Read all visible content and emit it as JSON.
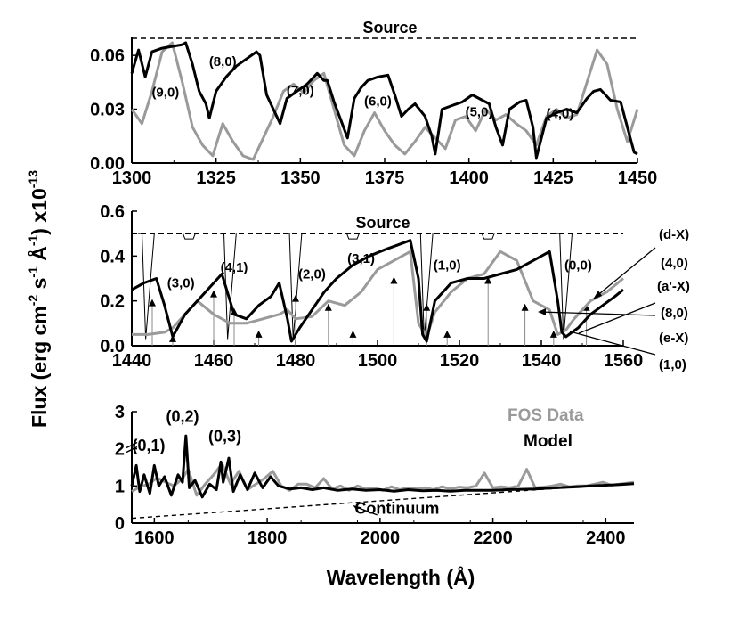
{
  "chart_data": [
    {
      "type": "line",
      "panel": "top",
      "xlim": [
        1300,
        1450
      ],
      "ylim": [
        0,
        0.07
      ],
      "xticks": [
        1300,
        1325,
        1350,
        1375,
        1400,
        1425,
        1450
      ],
      "xtick_labels": [
        "1300",
        "1325",
        "1350",
        "1375",
        "1400",
        "1425",
        "1450"
      ],
      "yticks": [
        0,
        0.03,
        0.06
      ],
      "ytick_labels": [
        "0.00",
        "0.03",
        "0.06"
      ],
      "source_label": "Source",
      "source_level": 0.0695,
      "series": [
        {
          "name": "FOS Data",
          "color": "#9a9a9a",
          "x": [
            1300,
            1303,
            1306,
            1309,
            1312,
            1315,
            1318,
            1321,
            1324,
            1327,
            1330,
            1333,
            1336,
            1339,
            1342,
            1345,
            1348,
            1351,
            1354,
            1357,
            1360,
            1363,
            1366,
            1369,
            1372,
            1375,
            1378,
            1381,
            1384,
            1387,
            1390,
            1393,
            1396,
            1399,
            1402,
            1405,
            1408,
            1411,
            1414,
            1417,
            1420,
            1423,
            1426,
            1429,
            1432,
            1435,
            1438,
            1441,
            1444,
            1447,
            1450
          ],
          "y": [
            0.03,
            0.022,
            0.04,
            0.062,
            0.067,
            0.045,
            0.02,
            0.01,
            0.004,
            0.022,
            0.012,
            0.004,
            0.002,
            0.014,
            0.026,
            0.04,
            0.044,
            0.039,
            0.046,
            0.05,
            0.03,
            0.01,
            0.004,
            0.018,
            0.028,
            0.018,
            0.01,
            0.005,
            0.012,
            0.02,
            0.014,
            0.008,
            0.024,
            0.026,
            0.018,
            0.03,
            0.024,
            0.027,
            0.022,
            0.018,
            0.01,
            0.026,
            0.03,
            0.025,
            0.027,
            0.045,
            0.063,
            0.055,
            0.03,
            0.012,
            0.03
          ]
        },
        {
          "name": "Model",
          "color": "#000000",
          "x": [
            1300,
            1302,
            1304,
            1306,
            1309,
            1312,
            1315,
            1316,
            1318,
            1320,
            1322,
            1323,
            1325,
            1328,
            1331,
            1334,
            1337,
            1338,
            1340,
            1342,
            1344,
            1346,
            1349,
            1352,
            1355,
            1357,
            1358,
            1360,
            1362,
            1364,
            1366,
            1368,
            1370,
            1373,
            1376,
            1378,
            1380,
            1382,
            1384,
            1387,
            1389,
            1390,
            1392,
            1395,
            1398,
            1401,
            1404,
            1406,
            1408,
            1410,
            1412,
            1415,
            1417,
            1419,
            1420,
            1423,
            1426,
            1429,
            1432,
            1435,
            1437,
            1439,
            1442,
            1445,
            1447,
            1449,
            1450
          ],
          "y": [
            0.05,
            0.063,
            0.048,
            0.062,
            0.064,
            0.065,
            0.066,
            0.067,
            0.055,
            0.04,
            0.033,
            0.025,
            0.04,
            0.048,
            0.054,
            0.058,
            0.062,
            0.06,
            0.038,
            0.03,
            0.022,
            0.036,
            0.04,
            0.044,
            0.05,
            0.046,
            0.046,
            0.034,
            0.024,
            0.014,
            0.036,
            0.042,
            0.046,
            0.048,
            0.049,
            0.038,
            0.026,
            0.03,
            0.033,
            0.026,
            0.015,
            0.005,
            0.03,
            0.032,
            0.034,
            0.038,
            0.035,
            0.033,
            0.02,
            0.01,
            0.03,
            0.034,
            0.035,
            0.02,
            0.003,
            0.025,
            0.028,
            0.03,
            0.028,
            0.036,
            0.04,
            0.041,
            0.035,
            0.034,
            0.02,
            0.006,
            0.005
          ]
        }
      ],
      "annotations": [
        {
          "text": "(9,0)",
          "x": 1310,
          "y": 0.037
        },
        {
          "text": "(8,0)",
          "x": 1327,
          "y": 0.054
        },
        {
          "text": "(7,0)",
          "x": 1350,
          "y": 0.038
        },
        {
          "text": "(6,0)",
          "x": 1373,
          "y": 0.032
        },
        {
          "text": "(5,0)",
          "x": 1403,
          "y": 0.026
        },
        {
          "text": "(4,0)",
          "x": 1427,
          "y": 0.025
        }
      ]
    },
    {
      "type": "line",
      "panel": "middle",
      "xlim": [
        1440,
        1560
      ],
      "ylim": [
        0,
        0.6
      ],
      "xticks": [
        1440,
        1460,
        1480,
        1500,
        1520,
        1540,
        1560
      ],
      "xtick_labels": [
        "1440",
        "1460",
        "1480",
        "1500",
        "1520",
        "1540",
        "1560"
      ],
      "yticks": [
        0,
        0.2,
        0.4,
        0.6
      ],
      "ytick_labels": [
        "0.0",
        "0.2",
        "0.4",
        "0.6"
      ],
      "source_label": "Source",
      "source_level": 0.5,
      "series": [
        {
          "name": "FOS Data",
          "color": "#9a9a9a",
          "x": [
            1440,
            1444,
            1448,
            1450,
            1452,
            1456,
            1460,
            1464,
            1468,
            1472,
            1476,
            1478,
            1480,
            1484,
            1488,
            1492,
            1496,
            1500,
            1504,
            1508,
            1510,
            1512,
            1514,
            1518,
            1522,
            1526,
            1530,
            1534,
            1538,
            1542,
            1544,
            1546,
            1548,
            1552,
            1556,
            1560
          ],
          "y": [
            0.05,
            0.05,
            0.06,
            0.08,
            0.12,
            0.2,
            0.14,
            0.1,
            0.1,
            0.12,
            0.14,
            0.16,
            0.12,
            0.13,
            0.2,
            0.18,
            0.24,
            0.34,
            0.38,
            0.42,
            0.1,
            0.04,
            0.15,
            0.24,
            0.3,
            0.32,
            0.42,
            0.38,
            0.2,
            0.16,
            0.05,
            0.07,
            0.12,
            0.2,
            0.24,
            0.3
          ]
        },
        {
          "name": "Model",
          "color": "#000000",
          "x": [
            1440,
            1443,
            1446,
            1448,
            1450,
            1453,
            1456,
            1459,
            1462,
            1463,
            1465,
            1468,
            1471,
            1474,
            1476,
            1478,
            1479,
            1481,
            1484,
            1487,
            1490,
            1494,
            1498,
            1502,
            1505,
            1508,
            1510,
            1511,
            1512,
            1514,
            1518,
            1522,
            1526,
            1530,
            1534,
            1538,
            1542,
            1544,
            1545,
            1546,
            1549,
            1552,
            1555,
            1558,
            1560
          ],
          "y": [
            0.25,
            0.28,
            0.3,
            0.18,
            0.04,
            0.14,
            0.2,
            0.26,
            0.32,
            0.26,
            0.14,
            0.12,
            0.18,
            0.22,
            0.28,
            0.12,
            0.02,
            0.08,
            0.16,
            0.24,
            0.3,
            0.36,
            0.4,
            0.43,
            0.45,
            0.47,
            0.3,
            0.05,
            0.02,
            0.2,
            0.28,
            0.3,
            0.3,
            0.32,
            0.34,
            0.38,
            0.42,
            0.2,
            0.06,
            0.04,
            0.08,
            0.14,
            0.18,
            0.22,
            0.25
          ]
        }
      ],
      "annotations": [
        {
          "text": "(3,0)",
          "x": 1452,
          "y": 0.26
        },
        {
          "text": "(4,1)",
          "x": 1465,
          "y": 0.33
        },
        {
          "text": "(2,0)",
          "x": 1484,
          "y": 0.3
        },
        {
          "text": "(3,1)",
          "x": 1496,
          "y": 0.37
        },
        {
          "text": "(1,0)",
          "x": 1517,
          "y": 0.34
        },
        {
          "text": "(0,0)",
          "x": 1549,
          "y": 0.34
        }
      ],
      "side_labels": [
        "(d-X)",
        "(4,0)",
        "(a'-X)",
        "(8,0)",
        "(e-X)",
        "(1,0)"
      ]
    },
    {
      "type": "line",
      "panel": "bottom",
      "xlim": [
        1560,
        2450
      ],
      "ylim": [
        0,
        3
      ],
      "xticks": [
        1600,
        1800,
        2000,
        2200,
        2400
      ],
      "xtick_labels": [
        "1600",
        "1800",
        "2000",
        "2200",
        "2400"
      ],
      "yticks": [
        0,
        1,
        2,
        3
      ],
      "ytick_labels": [
        "0",
        "1",
        "2",
        "3"
      ],
      "xlabel": "Wavelength (Å)",
      "series": [
        {
          "name": "FOS Data",
          "color": "#9a9a9a",
          "x": [
            1560,
            1575,
            1590,
            1605,
            1620,
            1635,
            1650,
            1660,
            1675,
            1690,
            1705,
            1720,
            1735,
            1750,
            1765,
            1780,
            1795,
            1810,
            1825,
            1840,
            1855,
            1870,
            1885,
            1900,
            1915,
            1930,
            1945,
            1960,
            1975,
            1990,
            2005,
            2020,
            2035,
            2050,
            2065,
            2080,
            2095,
            2110,
            2125,
            2140,
            2155,
            2170,
            2185,
            2200,
            2215,
            2230,
            2245,
            2260,
            2275,
            2290,
            2305,
            2320,
            2335,
            2350,
            2365,
            2380,
            2395,
            2410,
            2425,
            2440,
            2450
          ],
          "y": [
            0.85,
            0.98,
            1.05,
            1.22,
            1.1,
            1.0,
            1.2,
            1.45,
            0.75,
            1.05,
            1.3,
            1.6,
            1.05,
            1.4,
            0.9,
            1.05,
            1.2,
            1.4,
            1.0,
            0.88,
            1.05,
            1.05,
            0.95,
            1.2,
            0.92,
            1.0,
            0.88,
            1.0,
            0.92,
            0.95,
            0.88,
            0.98,
            0.9,
            0.95,
            0.92,
            0.95,
            0.9,
            0.98,
            0.92,
            0.97,
            0.95,
            1.0,
            1.35,
            0.95,
            0.98,
            0.95,
            1.0,
            1.45,
            0.95,
            0.97,
            1.0,
            1.05,
            0.98,
            1.0,
            1.0,
            1.05,
            1.1,
            1.02,
            1.05,
            1.08,
            1.1
          ]
        },
        {
          "name": "Model",
          "color": "#000000",
          "x": [
            1560,
            1568,
            1574,
            1582,
            1592,
            1600,
            1608,
            1618,
            1630,
            1642,
            1650,
            1656,
            1662,
            1672,
            1685,
            1698,
            1710,
            1718,
            1722,
            1732,
            1740,
            1752,
            1765,
            1778,
            1792,
            1806,
            1820,
            1840,
            1860,
            1880,
            1900,
            1925,
            1950,
            1975,
            2000,
            2025,
            2050,
            2075,
            2100,
            2125,
            2150,
            2175,
            2200,
            2225,
            2250,
            2275,
            2300,
            2325,
            2350,
            2375,
            2400,
            2425,
            2450
          ],
          "y": [
            1.0,
            1.55,
            0.85,
            1.3,
            0.8,
            1.55,
            1.0,
            1.25,
            0.75,
            1.3,
            1.1,
            2.35,
            0.95,
            1.15,
            0.7,
            1.05,
            0.9,
            1.65,
            1.1,
            1.75,
            0.85,
            1.3,
            0.9,
            1.35,
            0.95,
            1.25,
            1.0,
            0.92,
            0.95,
            0.9,
            0.95,
            0.88,
            0.92,
            0.88,
            0.9,
            0.86,
            0.9,
            0.87,
            0.88,
            0.86,
            0.88,
            0.88,
            0.88,
            0.9,
            0.91,
            0.92,
            0.94,
            0.96,
            0.98,
            1.0,
            1.02,
            1.04,
            1.06
          ]
        },
        {
          "name": "Continuum",
          "color": "#000000",
          "dashed": true,
          "x": [
            1560,
            2450
          ],
          "y": [
            0.13,
            1.08
          ]
        }
      ],
      "annotations": [
        {
          "text": "(0,1)",
          "x": 1590,
          "y": 1.95
        },
        {
          "text": "(0,2)",
          "x": 1650,
          "y": 2.72
        },
        {
          "text": "(0,3)",
          "x": 1725,
          "y": 2.2
        },
        {
          "text": "Continuum",
          "x": 2030,
          "y": 0.25
        }
      ],
      "legend": [
        {
          "label": "FOS Data",
          "color": "#9a9a9a"
        },
        {
          "label": "Model",
          "color": "#000000"
        }
      ]
    }
  ],
  "shared_ylabel": {
    "main": "Flux (erg cm",
    "sup1": "-2",
    "mid1": " s",
    "sup2": "-1",
    "mid2": " Å",
    "sup3": "-1",
    "tail": ") x10",
    "sup4": "-13"
  }
}
